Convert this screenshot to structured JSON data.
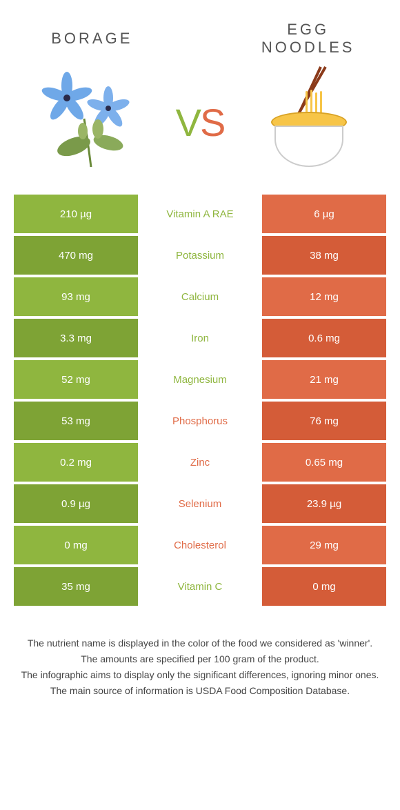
{
  "header": {
    "left_title": "BORAGE",
    "right_title": "EGG NOODLES",
    "vs_v": "V",
    "vs_s": "S"
  },
  "colors": {
    "left": "#8fb63f",
    "right": "#e06b47",
    "left_dark": "#7ea335",
    "right_dark": "#d45c38"
  },
  "rows": [
    {
      "left": "210 µg",
      "mid": "Vitamin A RAE",
      "right": "6 µg",
      "winner": "left"
    },
    {
      "left": "470 mg",
      "mid": "Potassium",
      "right": "38 mg",
      "winner": "left"
    },
    {
      "left": "93 mg",
      "mid": "Calcium",
      "right": "12 mg",
      "winner": "left"
    },
    {
      "left": "3.3 mg",
      "mid": "Iron",
      "right": "0.6 mg",
      "winner": "left"
    },
    {
      "left": "52 mg",
      "mid": "Magnesium",
      "right": "21 mg",
      "winner": "left"
    },
    {
      "left": "53 mg",
      "mid": "Phosphorus",
      "right": "76 mg",
      "winner": "right"
    },
    {
      "left": "0.2 mg",
      "mid": "Zinc",
      "right": "0.65 mg",
      "winner": "right"
    },
    {
      "left": "0.9 µg",
      "mid": "Selenium",
      "right": "23.9 µg",
      "winner": "right"
    },
    {
      "left": "0 mg",
      "mid": "Cholesterol",
      "right": "29 mg",
      "winner": "right"
    },
    {
      "left": "35 mg",
      "mid": "Vitamin C",
      "right": "0 mg",
      "winner": "left"
    }
  ],
  "footer": {
    "line1": "The nutrient name is displayed in the color of the food we considered as 'winner'.",
    "line2": "The amounts are specified per 100 gram of the product.",
    "line3": "The infographic aims to display only the significant differences, ignoring minor ones.",
    "line4": "The main source of information is USDA Food Composition Database."
  }
}
